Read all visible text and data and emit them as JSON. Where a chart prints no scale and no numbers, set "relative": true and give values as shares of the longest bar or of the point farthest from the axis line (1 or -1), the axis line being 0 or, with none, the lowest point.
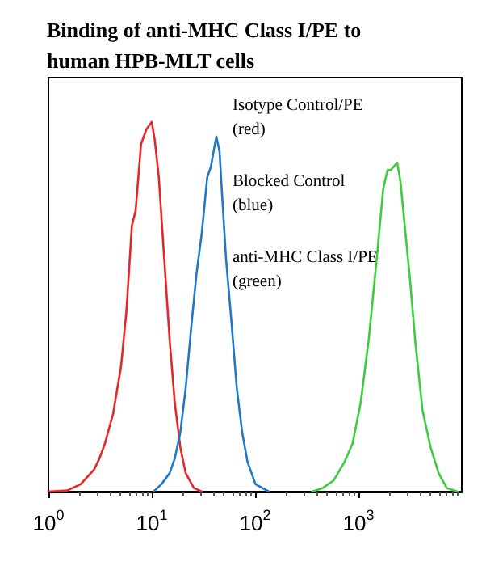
{
  "chart_data": {
    "type": "line",
    "title": "Binding of anti-MHC Class I/PE to human HPB-MLT cells",
    "relative": true,
    "xlim": [
      1,
      10000
    ],
    "log": "x",
    "xticks": [
      {
        "value": 1,
        "label": "10$^{0}$"
      },
      {
        "value": 10,
        "label": "10$^{1}$"
      },
      {
        "value": 100,
        "label": "10$^{2}$"
      },
      {
        "value": 1000,
        "label": "10$^{3}$"
      }
    ],
    "annotations": [
      "Isotype Control/PE\n(red)",
      "Blocked Control\n(blue)",
      "anti-MHC Class I/PE\n(green)"
    ],
    "grid": false,
    "marker": "none",
    "line_style": "solid",
    "series": [
      {
        "color": "#e5262b",
        "x": [
          1,
          1.52,
          2.05,
          2.77,
          3.12,
          3.52,
          4.22,
          5.05,
          5.69,
          6.42,
          6.98,
          7.87,
          8.87,
          10,
          10.7,
          11.7,
          13.2,
          14.9,
          16.7,
          18.9,
          21.3,
          25.5,
          30.5
        ],
        "values": [
          0,
          0.003,
          0.02,
          0.06,
          0.09,
          0.13,
          0.21,
          0.34,
          0.49,
          0.72,
          0.76,
          0.94,
          0.98,
          1,
          0.95,
          0.85,
          0.63,
          0.41,
          0.24,
          0.12,
          0.05,
          0.01,
          0
        ]
      },
      {
        "color": "#1f78c8",
        "x": [
          10.4,
          12.4,
          14.9,
          16.7,
          18.9,
          21.3,
          24,
          27.1,
          30.5,
          34.4,
          37.4,
          40.2,
          42.2,
          45.3,
          47.5,
          52.3,
          59,
          66.5,
          75,
          84.5,
          101,
          136
        ],
        "values": [
          0,
          0.02,
          0.05,
          0.09,
          0.16,
          0.28,
          0.44,
          0.59,
          0.7,
          0.85,
          0.88,
          0.93,
          0.96,
          0.92,
          0.82,
          0.63,
          0.46,
          0.28,
          0.16,
          0.08,
          0.02,
          0
        ]
      },
      {
        "color": "#3ccc3c",
        "x": [
          356,
          453,
          575,
          732,
          877,
          1050,
          1256,
          1503,
          1738,
          1910,
          2055,
          2207,
          2371,
          2547,
          2805,
          3162,
          3565,
          4169,
          4988,
          5970,
          7145,
          9087
        ],
        "values": [
          0,
          0.01,
          0.03,
          0.08,
          0.13,
          0.24,
          0.41,
          0.63,
          0.82,
          0.87,
          0.87,
          0.88,
          0.89,
          0.84,
          0.72,
          0.57,
          0.4,
          0.22,
          0.12,
          0.05,
          0.01,
          0
        ]
      }
    ]
  }
}
